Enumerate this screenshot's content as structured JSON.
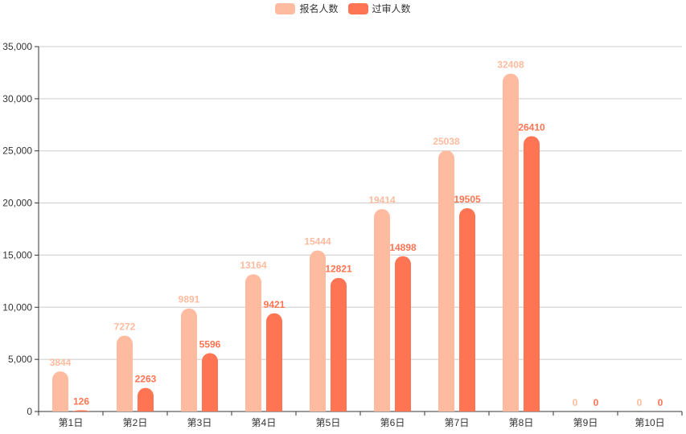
{
  "chart_data": {
    "type": "bar",
    "categories": [
      "第1日",
      "第2日",
      "第3日",
      "第4日",
      "第5日",
      "第6日",
      "第7日",
      "第8日",
      "第9日",
      "第10日"
    ],
    "series": [
      {
        "name": "报名人数",
        "color": "#ffbb9f",
        "values": [
          3844,
          7272,
          9891,
          13164,
          15444,
          19414,
          25038,
          32408,
          0,
          0
        ]
      },
      {
        "name": "过审人数",
        "color": "#ff7452",
        "values": [
          126,
          2263,
          5596,
          9421,
          12821,
          14898,
          19505,
          26410,
          0,
          0
        ]
      }
    ],
    "yticks": [
      "0",
      "5,000",
      "10,000",
      "15,000",
      "20,000",
      "25,000",
      "30,000",
      "35,000"
    ],
    "ylim": [
      0,
      35000
    ],
    "grid": true,
    "legend_position": "top-center"
  }
}
